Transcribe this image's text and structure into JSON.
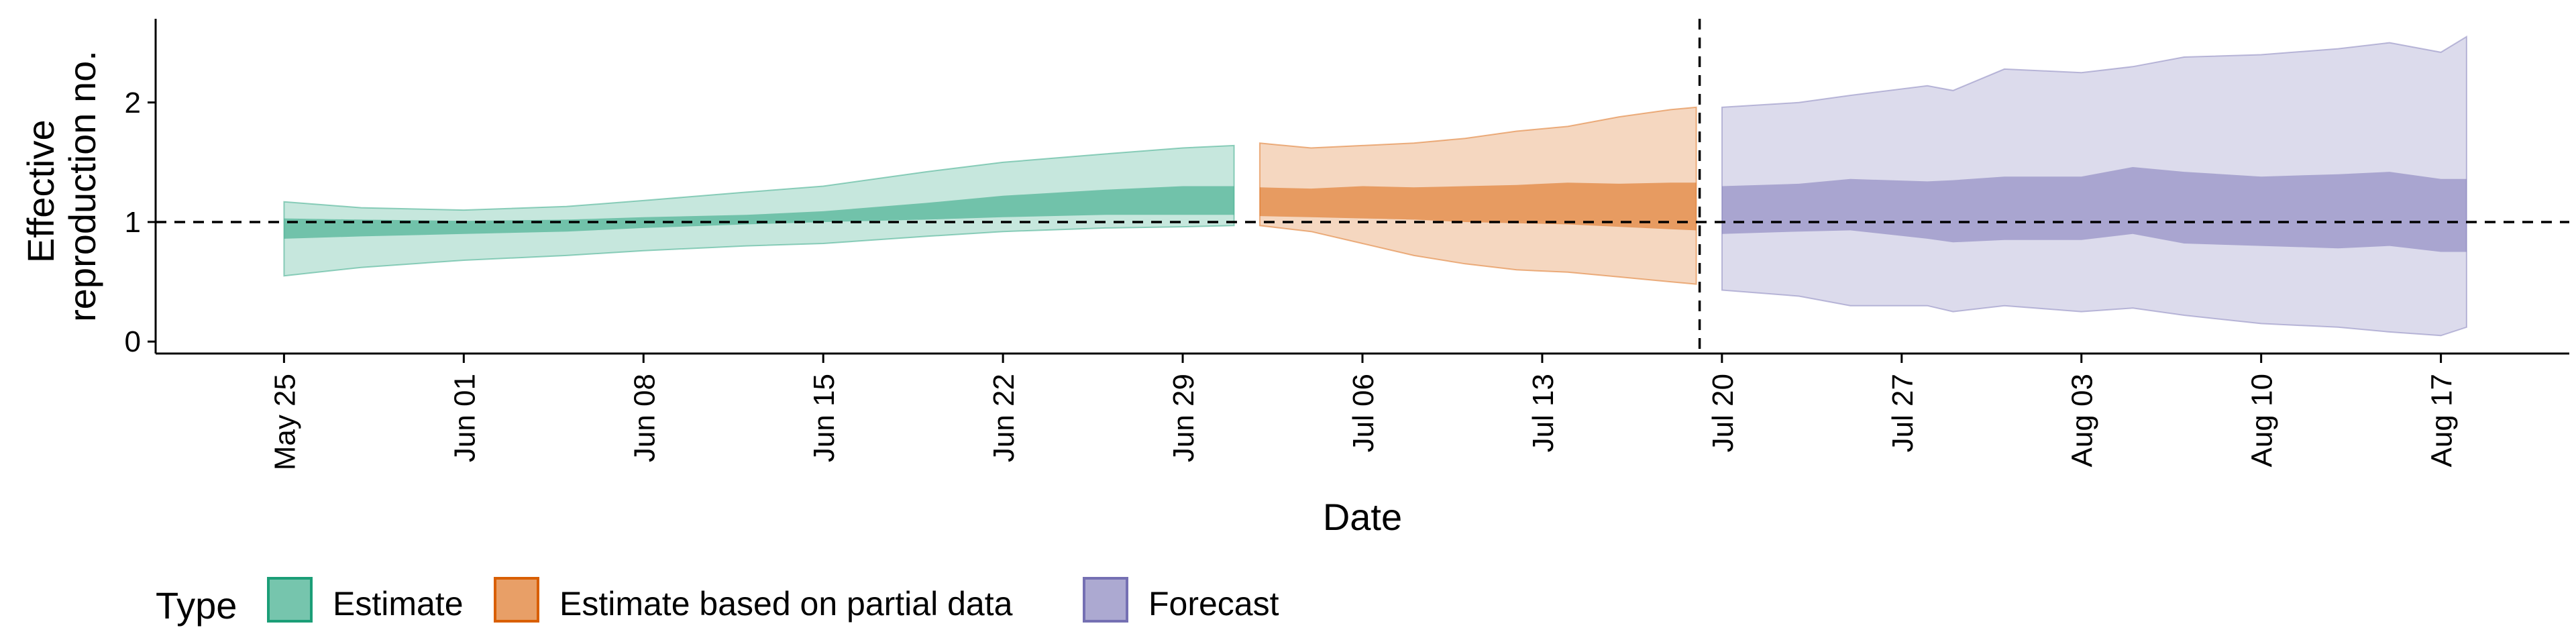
{
  "chart_data": {
    "type": "area",
    "xlabel": "Date",
    "ylabel_lines": [
      "Effective",
      "reproduction no."
    ],
    "x_ticks": [
      "May 25",
      "Jun 01",
      "Jun 08",
      "Jun 15",
      "Jun 22",
      "Jun 29",
      "Jul 06",
      "Jul 13",
      "Jul 20",
      "Jul 27",
      "Aug 03",
      "Aug 10",
      "Aug 17"
    ],
    "y_ticks": [
      "0",
      "1",
      "2"
    ],
    "ylim": [
      -0.1,
      2.7
    ],
    "x_range": [
      "2020-05-20",
      "2020-08-22"
    ],
    "reference_hline": 1,
    "reference_vline": "2020-07-19",
    "legend": {
      "title": "Type",
      "position": "bottom-left",
      "items": [
        {
          "label": "Estimate",
          "color": "#1b9e77"
        },
        {
          "label": "Estimate based on partial data",
          "color": "#d95f02"
        },
        {
          "label": "Forecast",
          "color": "#7570b3"
        }
      ]
    },
    "series": [
      {
        "name": "Estimate",
        "color": "#1b9e77",
        "x": [
          "2020-05-25",
          "2020-05-28",
          "2020-06-01",
          "2020-06-05",
          "2020-06-08",
          "2020-06-12",
          "2020-06-15",
          "2020-06-19",
          "2020-06-22",
          "2020-06-26",
          "2020-06-29",
          "2020-07-01"
        ],
        "outer_low": [
          0.55,
          0.62,
          0.68,
          0.72,
          0.76,
          0.8,
          0.82,
          0.88,
          0.92,
          0.95,
          0.96,
          0.97
        ],
        "outer_high": [
          1.17,
          1.12,
          1.1,
          1.13,
          1.18,
          1.25,
          1.3,
          1.42,
          1.5,
          1.57,
          1.62,
          1.64
        ],
        "inner_low": [
          0.86,
          0.88,
          0.9,
          0.92,
          0.95,
          0.98,
          1.0,
          1.02,
          1.04,
          1.06,
          1.06,
          1.06
        ],
        "inner_high": [
          1.03,
          1.02,
          1.01,
          1.02,
          1.04,
          1.06,
          1.09,
          1.16,
          1.22,
          1.27,
          1.3,
          1.3
        ]
      },
      {
        "name": "Estimate based on partial data",
        "color": "#d95f02",
        "x": [
          "2020-07-02",
          "2020-07-04",
          "2020-07-06",
          "2020-07-08",
          "2020-07-10",
          "2020-07-12",
          "2020-07-14",
          "2020-07-16",
          "2020-07-18",
          "2020-07-19"
        ],
        "outer_low": [
          0.97,
          0.92,
          0.82,
          0.72,
          0.65,
          0.6,
          0.58,
          0.54,
          0.5,
          0.48
        ],
        "outer_high": [
          1.66,
          1.62,
          1.64,
          1.66,
          1.7,
          1.76,
          1.8,
          1.88,
          1.94,
          1.96
        ],
        "inner_low": [
          1.05,
          1.04,
          1.03,
          1.02,
          1.0,
          0.99,
          0.98,
          0.96,
          0.94,
          0.93
        ],
        "inner_high": [
          1.29,
          1.28,
          1.3,
          1.29,
          1.3,
          1.31,
          1.33,
          1.32,
          1.33,
          1.33
        ]
      },
      {
        "name": "Forecast",
        "color": "#7570b3",
        "x": [
          "2020-07-20",
          "2020-07-23",
          "2020-07-25",
          "2020-07-28",
          "2020-07-29",
          "2020-07-31",
          "2020-08-03",
          "2020-08-05",
          "2020-08-07",
          "2020-08-10",
          "2020-08-13",
          "2020-08-15",
          "2020-08-17",
          "2020-08-18"
        ],
        "outer_low": [
          0.43,
          0.38,
          0.3,
          0.3,
          0.25,
          0.3,
          0.25,
          0.28,
          0.22,
          0.15,
          0.12,
          0.08,
          0.05,
          0.12
        ],
        "outer_high": [
          1.96,
          2.0,
          2.06,
          2.14,
          2.1,
          2.28,
          2.25,
          2.3,
          2.38,
          2.4,
          2.45,
          2.5,
          2.42,
          2.55
        ],
        "inner_low": [
          0.9,
          0.92,
          0.93,
          0.86,
          0.83,
          0.85,
          0.85,
          0.9,
          0.82,
          0.8,
          0.78,
          0.8,
          0.75,
          0.75
        ],
        "inner_high": [
          1.3,
          1.32,
          1.36,
          1.34,
          1.35,
          1.38,
          1.38,
          1.46,
          1.42,
          1.38,
          1.4,
          1.42,
          1.36,
          1.36
        ]
      }
    ]
  }
}
